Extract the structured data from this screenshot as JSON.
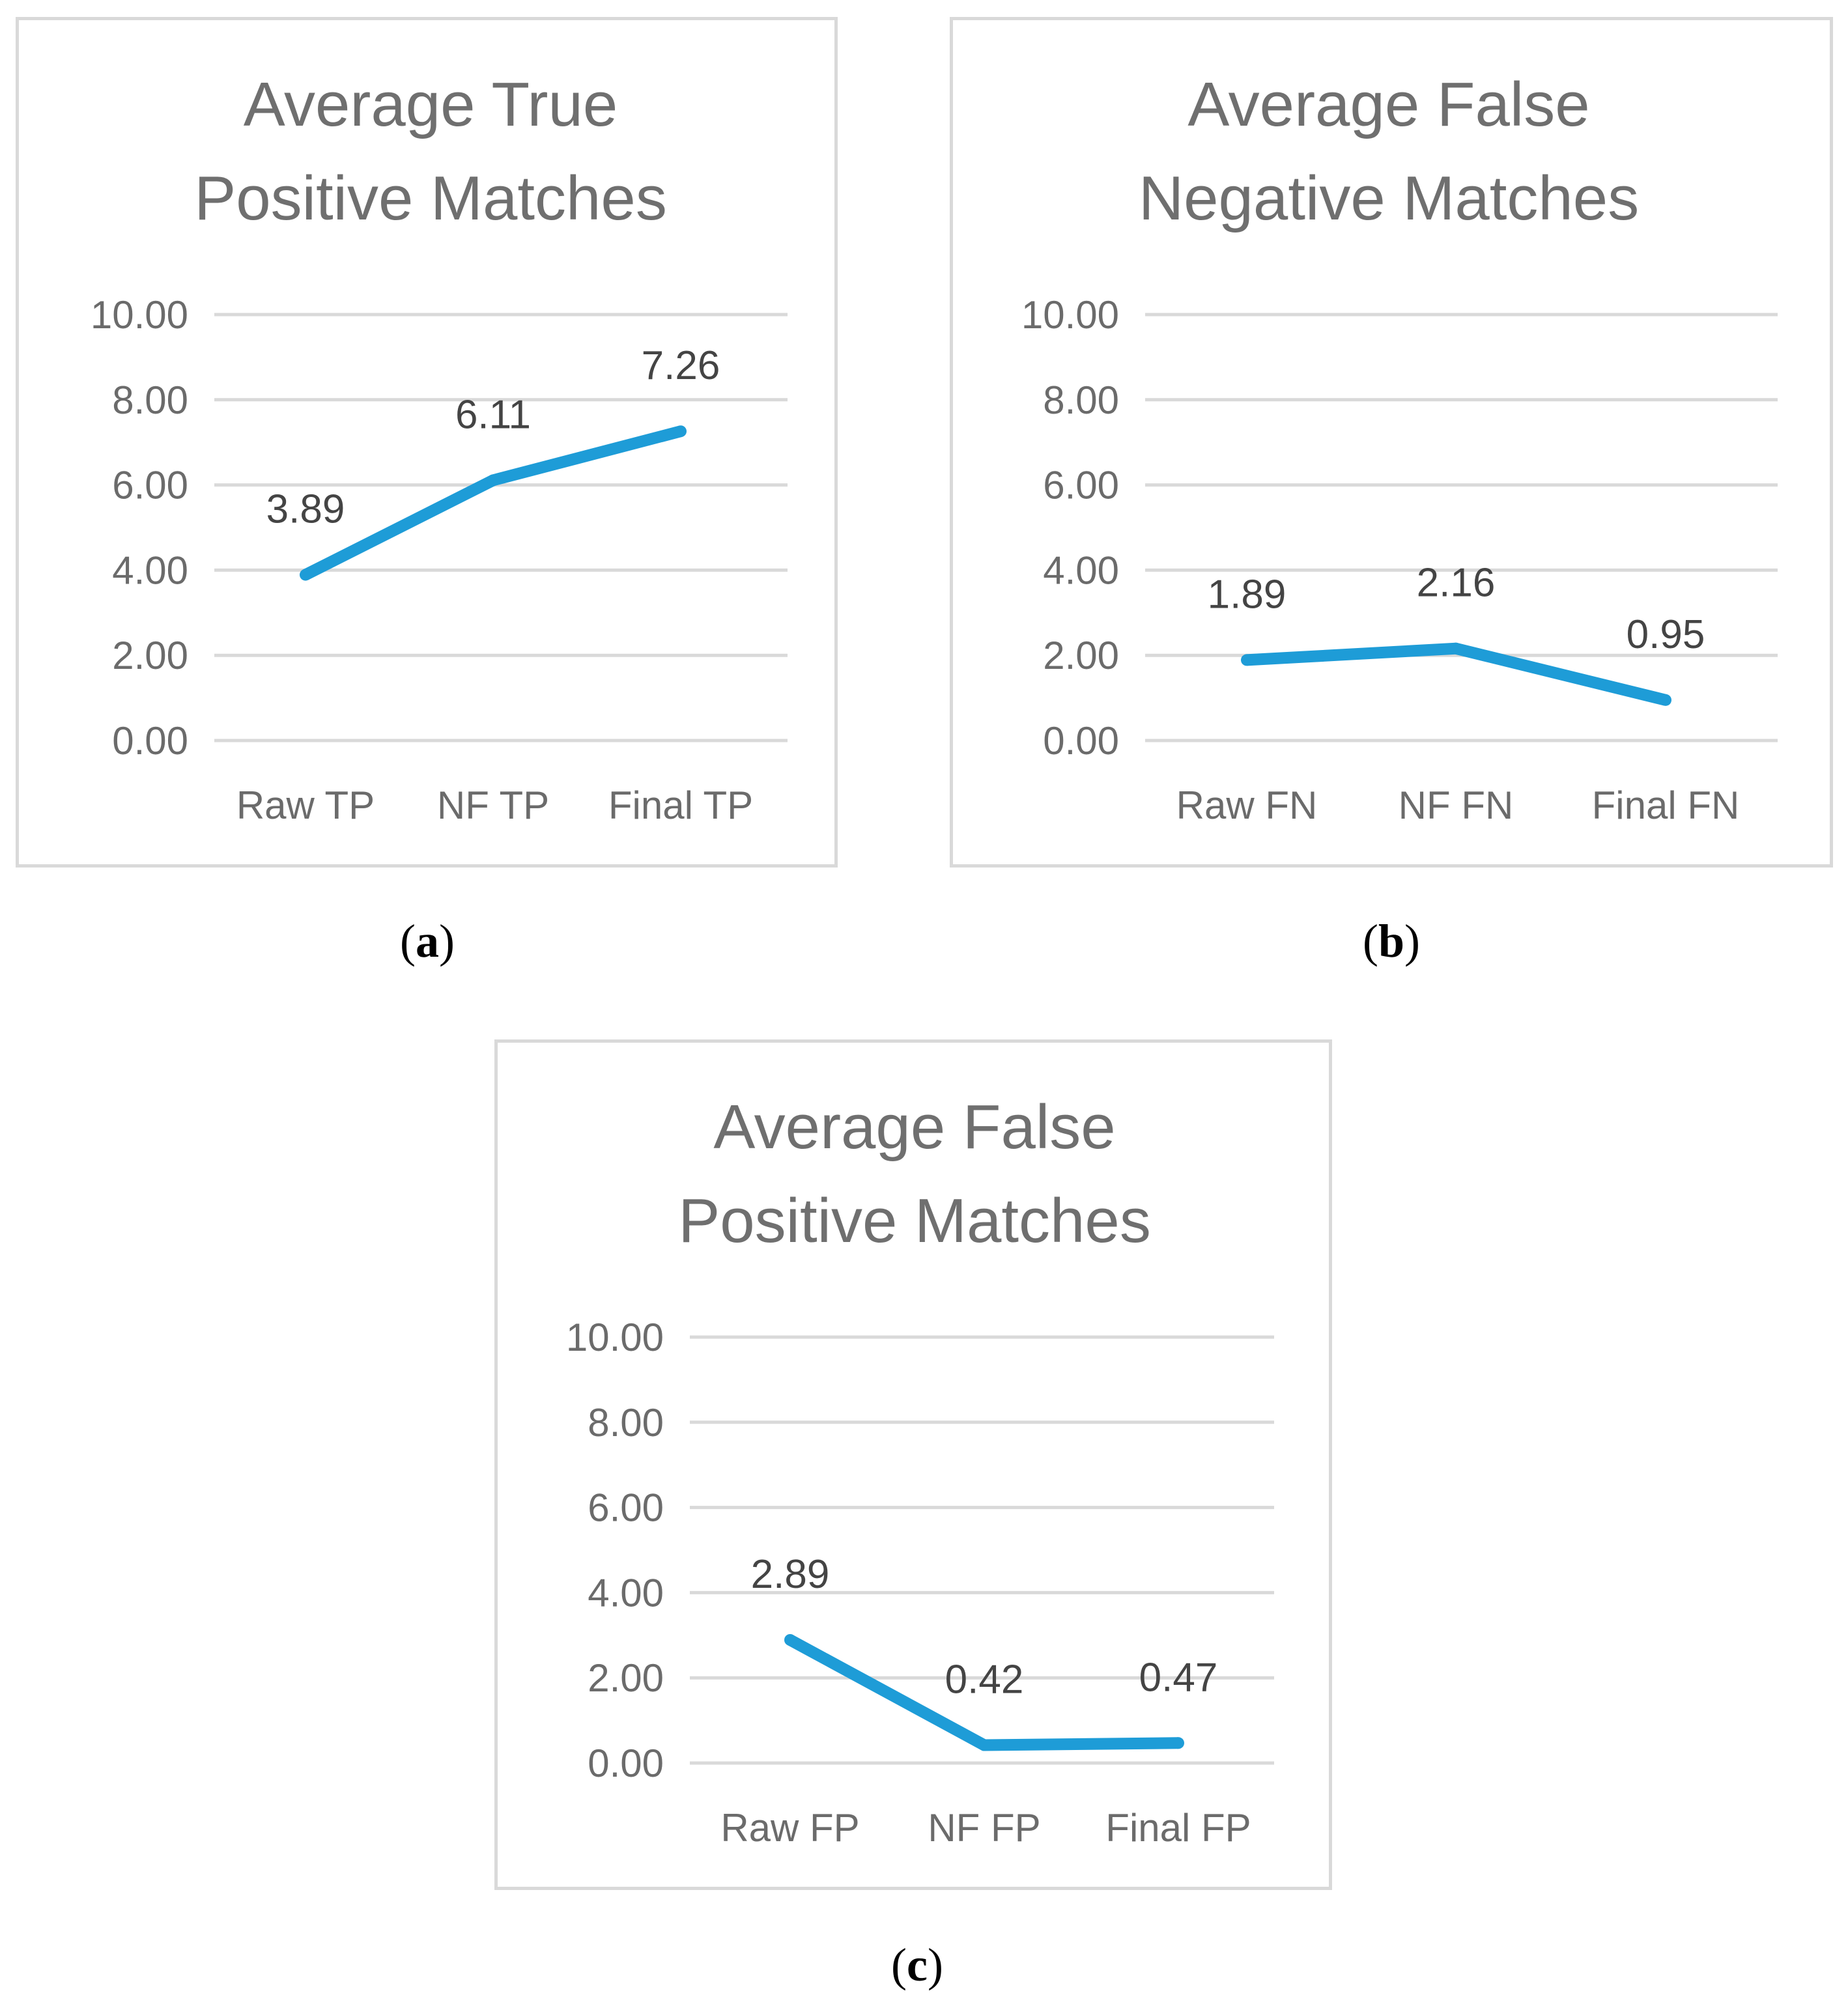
{
  "chart_data": [
    {
      "id": "a",
      "type": "line",
      "title_lines": [
        "Average True",
        "Positive Matches"
      ],
      "categories": [
        "Raw TP",
        "NF TP",
        "Final TP"
      ],
      "values": [
        3.89,
        6.11,
        7.26
      ],
      "data_labels": [
        "3.89",
        "6.11",
        "7.26"
      ],
      "y_ticks": [
        "0.00",
        "2.00",
        "4.00",
        "6.00",
        "8.00",
        "10.00"
      ],
      "ylim": [
        0,
        10
      ],
      "grid": true,
      "line_color": "#1e9cd7",
      "caption_open": "(",
      "caption_letter": "a",
      "caption_close": ")"
    },
    {
      "id": "b",
      "type": "line",
      "title_lines": [
        "Average False",
        "Negative Matches"
      ],
      "categories": [
        "Raw FN",
        "NF FN",
        "Final FN"
      ],
      "values": [
        1.89,
        2.16,
        0.95
      ],
      "data_labels": [
        "1.89",
        "2.16",
        "0.95"
      ],
      "y_ticks": [
        "0.00",
        "2.00",
        "4.00",
        "6.00",
        "8.00",
        "10.00"
      ],
      "ylim": [
        0,
        10
      ],
      "grid": true,
      "line_color": "#1e9cd7",
      "caption_open": "(",
      "caption_letter": "b",
      "caption_close": ")"
    },
    {
      "id": "c",
      "type": "line",
      "title_lines": [
        "Average False",
        "Positive Matches"
      ],
      "categories": [
        "Raw FP",
        "NF FP",
        "Final FP"
      ],
      "values": [
        2.89,
        0.42,
        0.47
      ],
      "data_labels": [
        "2.89",
        "0.42",
        "0.47"
      ],
      "y_ticks": [
        "0.00",
        "2.00",
        "4.00",
        "6.00",
        "8.00",
        "10.00"
      ],
      "ylim": [
        0,
        10
      ],
      "grid": true,
      "line_color": "#1e9cd7",
      "caption_open": "(",
      "caption_letter": "c",
      "caption_close": ")"
    }
  ]
}
